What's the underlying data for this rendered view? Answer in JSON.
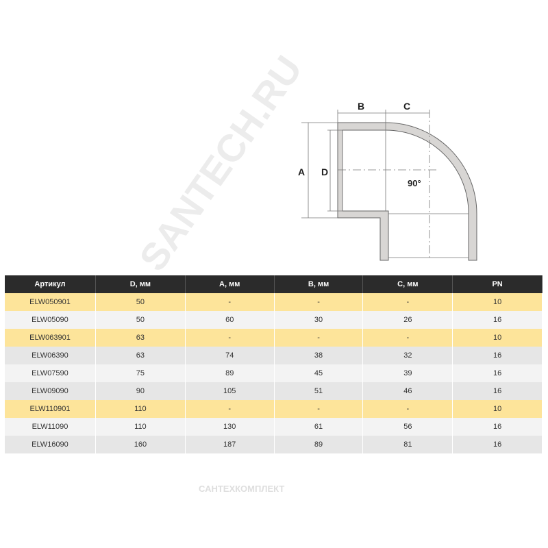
{
  "diagram": {
    "labels": {
      "a": "A",
      "b": "B",
      "c": "C",
      "d": "D",
      "angle": "90°"
    }
  },
  "table": {
    "headers": [
      "Артикул",
      "D, мм",
      "A, мм",
      "B, мм",
      "C, мм",
      "PN"
    ],
    "rows": [
      {
        "highlight": true,
        "cells": [
          "ELW050901",
          "50",
          "-",
          "-",
          "-",
          "10"
        ]
      },
      {
        "highlight": false,
        "cells": [
          "ELW05090",
          "50",
          "60",
          "30",
          "26",
          "16"
        ]
      },
      {
        "highlight": true,
        "cells": [
          "ELW063901",
          "63",
          "-",
          "-",
          "-",
          "10"
        ]
      },
      {
        "highlight": false,
        "cells": [
          "ELW06390",
          "63",
          "74",
          "38",
          "32",
          "16"
        ]
      },
      {
        "highlight": false,
        "cells": [
          "ELW07590",
          "75",
          "89",
          "45",
          "39",
          "16"
        ]
      },
      {
        "highlight": false,
        "cells": [
          "ELW09090",
          "90",
          "105",
          "51",
          "46",
          "16"
        ]
      },
      {
        "highlight": true,
        "cells": [
          "ELW110901",
          "110",
          "-",
          "-",
          "-",
          "10"
        ]
      },
      {
        "highlight": false,
        "cells": [
          "ELW11090",
          "110",
          "130",
          "61",
          "56",
          "16"
        ]
      },
      {
        "highlight": false,
        "cells": [
          "ELW16090",
          "160",
          "187",
          "89",
          "81",
          "16"
        ]
      }
    ],
    "colors": {
      "header": "#2b2b2b",
      "highlight": "#fde49a",
      "row_light": "#f3f3f3",
      "row_dark": "#e6e6e6"
    }
  },
  "watermarks": {
    "diagonal": "SANTECH.RU",
    "bottom": "САНТЕХКОМПЛЕКТ"
  }
}
